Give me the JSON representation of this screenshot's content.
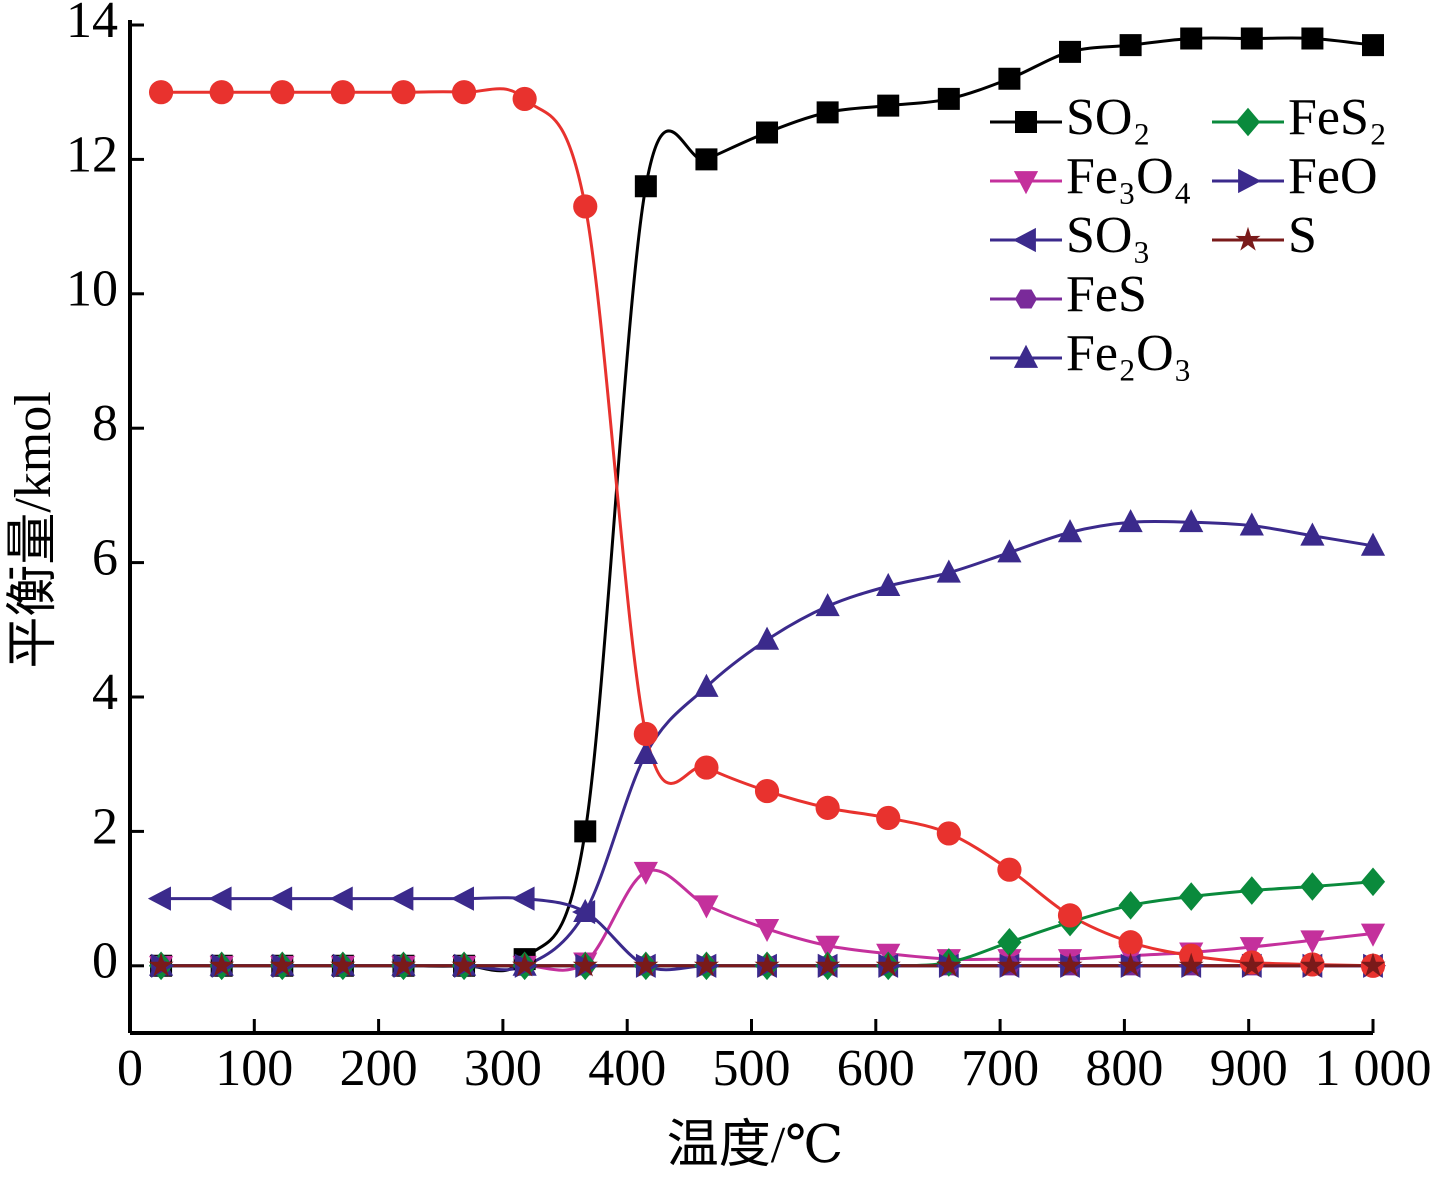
{
  "chart_data": {
    "type": "line",
    "x_label": "温度/℃",
    "y_label": "平衡量/kmol",
    "x": [
      25,
      73.75,
      122.5,
      171.25,
      220,
      268.75,
      317.5,
      366.25,
      415,
      463.75,
      512.5,
      561.25,
      610,
      658.75,
      707.5,
      756.25,
      805,
      853.75,
      902.5,
      951.25,
      1000
    ],
    "series": [
      {
        "name": "SO₂",
        "color": "#000000",
        "marker": "square",
        "values": [
          0,
          0,
          0,
          0,
          0,
          0,
          0.1,
          2.0,
          11.6,
          12.0,
          12.4,
          12.7,
          12.8,
          12.9,
          13.2,
          13.6,
          13.7,
          13.8,
          13.8,
          13.8,
          13.7
        ]
      },
      {
        "name": "Fe₃O₄",
        "color": "#c4309c",
        "marker": "triangle-down",
        "values": [
          0,
          0,
          0,
          0,
          0,
          0,
          0,
          0.05,
          1.4,
          0.9,
          0.55,
          0.3,
          0.18,
          0.1,
          0.1,
          0.1,
          0.15,
          0.2,
          0.28,
          0.38,
          0.48
        ]
      },
      {
        "name": "SO₃",
        "color": "#3b2a8c",
        "marker": "triangle-left",
        "values": [
          1,
          1,
          1,
          1,
          1,
          1,
          1,
          0.8,
          0,
          0,
          0,
          0,
          0,
          0,
          0,
          0,
          0,
          0,
          0,
          0,
          0
        ]
      },
      {
        "name": "FeS",
        "color": "#7a2a9a",
        "marker": "hexagon",
        "values": [
          0,
          0,
          0,
          0,
          0,
          0,
          0,
          0,
          0,
          0,
          0,
          0,
          0,
          0,
          0,
          0,
          0,
          0,
          0,
          0,
          0
        ]
      },
      {
        "name": "Fe₂O₃",
        "color": "#3b2a8c",
        "marker": "triangle-up",
        "values": [
          0,
          0,
          0,
          0,
          0,
          0,
          0,
          0.8,
          3.15,
          4.15,
          4.85,
          5.35,
          5.65,
          5.85,
          6.15,
          6.45,
          6.6,
          6.6,
          6.55,
          6.4,
          6.25
        ]
      },
      {
        "name": "FeS₂",
        "color": "#0a8a3c",
        "marker": "diamond",
        "values": [
          0,
          0,
          0,
          0,
          0,
          0,
          0,
          0,
          0,
          0,
          0,
          0,
          0,
          0.05,
          0.35,
          0.65,
          0.9,
          1.03,
          1.12,
          1.18,
          1.25
        ]
      },
      {
        "name": "FeO",
        "color": "#3b2a8c",
        "marker": "triangle-right",
        "values": [
          0,
          0,
          0,
          0,
          0,
          0,
          0,
          0,
          0,
          0,
          0,
          0,
          0,
          0,
          0,
          0,
          0,
          0,
          0,
          0,
          0
        ]
      },
      {
        "color": "#e8322e",
        "marker": "circle",
        "values": [
          13,
          13,
          13,
          13,
          13,
          13,
          12.9,
          11.3,
          3.45,
          2.95,
          2.6,
          2.35,
          2.2,
          1.97,
          1.43,
          0.75,
          0.35,
          0.15,
          0.05,
          0.02,
          0
        ]
      },
      {
        "name": "S",
        "color": "#7a1a1a",
        "marker": "star",
        "values": [
          0,
          0,
          0,
          0,
          0,
          0,
          0,
          0,
          0,
          0,
          0,
          0,
          0,
          0,
          0,
          0,
          0,
          0,
          0,
          0,
          0
        ]
      }
    ],
    "xlim": [
      0,
      1000
    ],
    "ylim": [
      -1,
      14
    ],
    "xticks": [
      0,
      100,
      200,
      300,
      400,
      500,
      600,
      700,
      800,
      900,
      {
        "value": 1000,
        "label": "1 000"
      }
    ],
    "yticks": [
      0,
      2,
      4,
      6,
      8,
      10,
      12,
      14
    ],
    "legend": "upper right"
  }
}
